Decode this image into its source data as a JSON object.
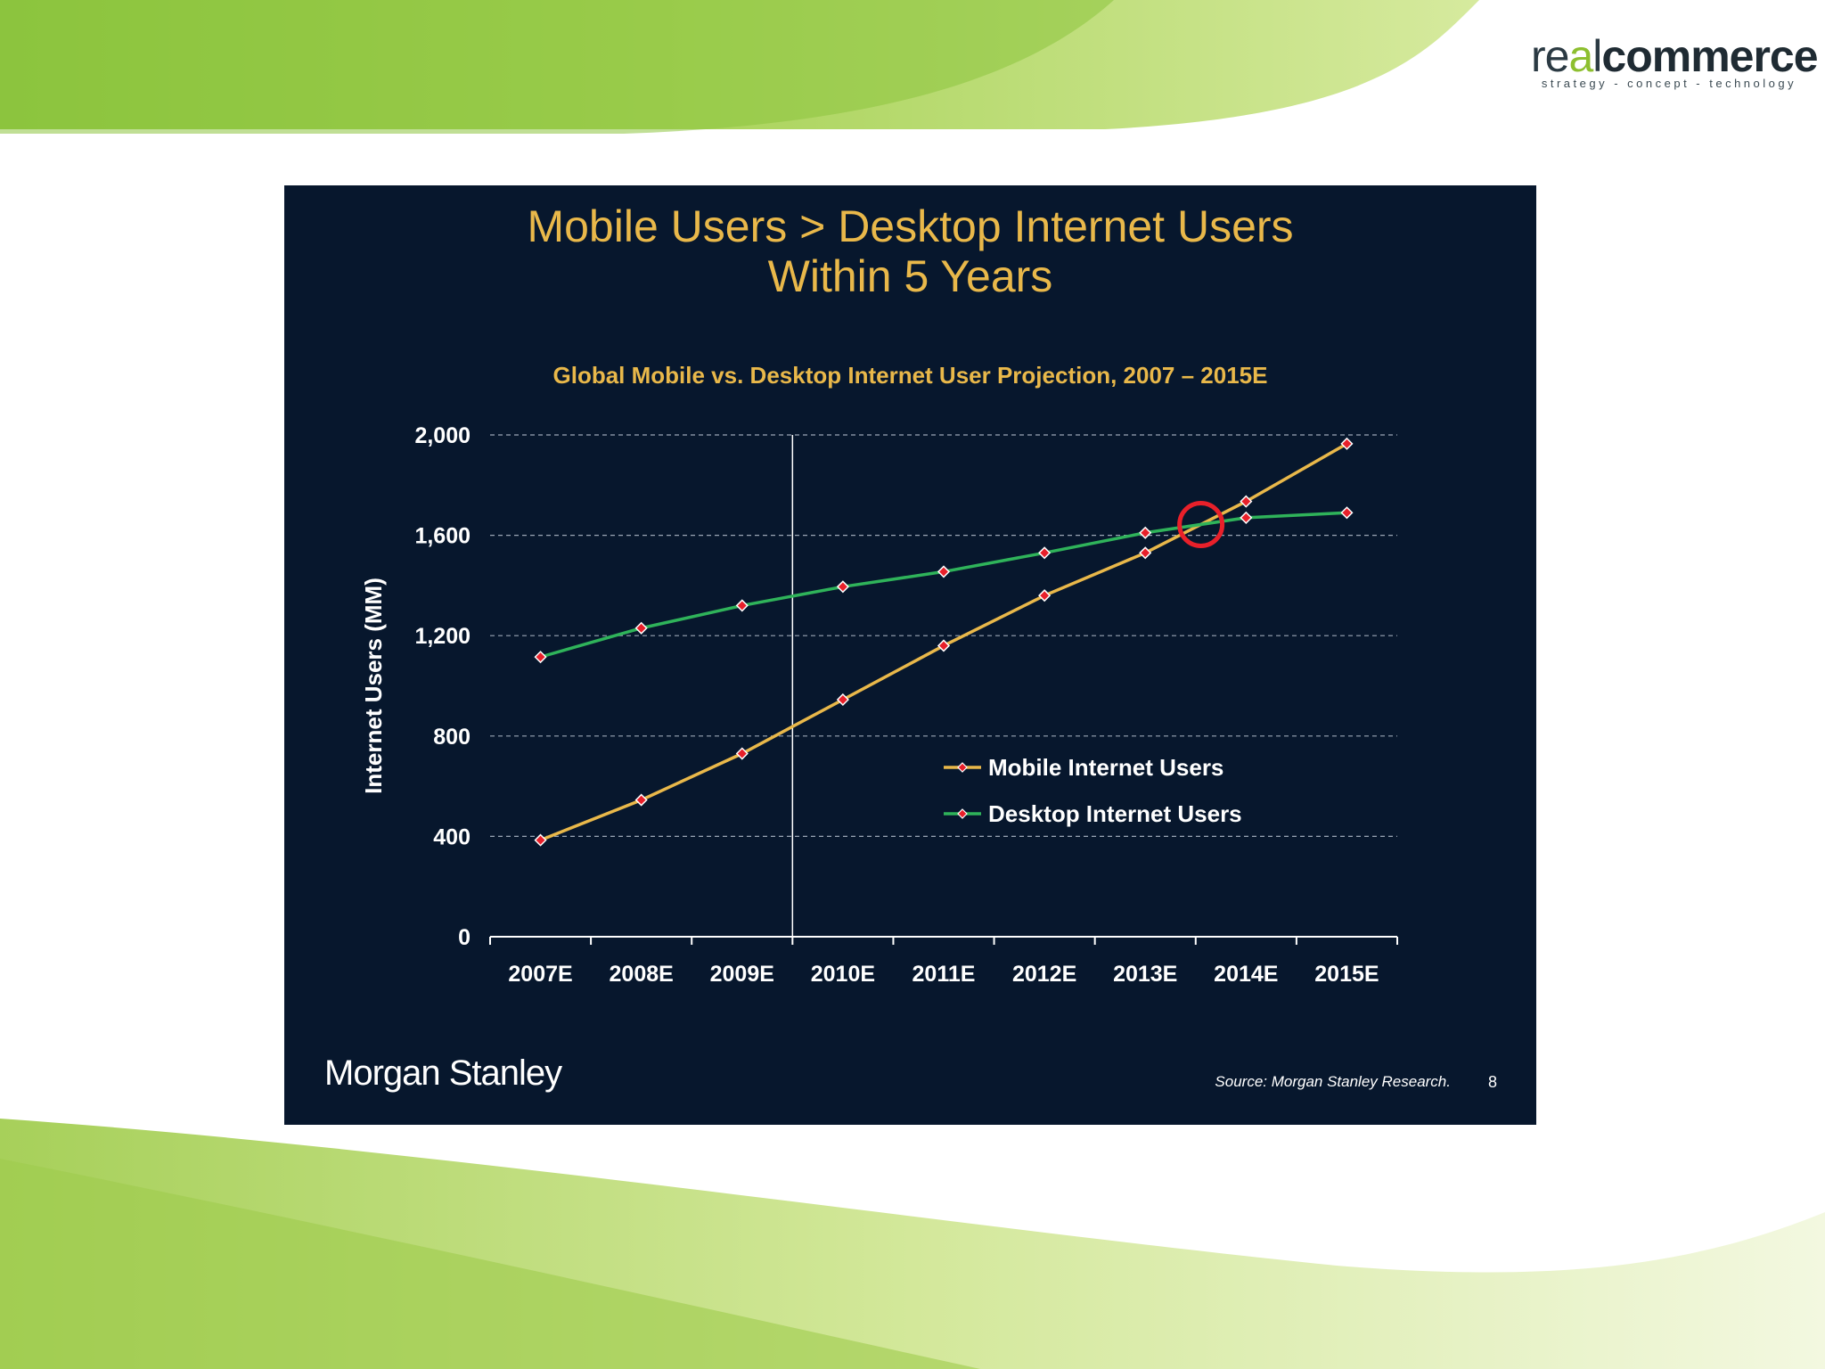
{
  "logo": {
    "prefix": "re",
    "accent": "a",
    "mid": "l",
    "bold": "commerce",
    "tagline": "strategy - concept - technology"
  },
  "slide": {
    "title_line1": "Mobile Users > Desktop Internet Users",
    "title_line2": "Within 5 Years"
  },
  "footer": {
    "brand": "Morgan Stanley",
    "source": "Source: Morgan Stanley Research.",
    "page": "8"
  },
  "colors": {
    "panel": "#07172d",
    "mobile": "#e9b84a",
    "desktop": "#2fb35a",
    "marker": "#e8202a",
    "title": "#e9b84a",
    "highlight": "#e8202a"
  },
  "chart_data": {
    "type": "line",
    "title": "Global Mobile vs. Desktop Internet User Projection, 2007 – 2015E",
    "ylabel": "Internet Users (MM)",
    "xlabel": "",
    "categories": [
      "2007E",
      "2008E",
      "2009E",
      "2010E",
      "2011E",
      "2012E",
      "2013E",
      "2014E",
      "2015E"
    ],
    "ylim": [
      0,
      2000
    ],
    "yticks": [
      0,
      400,
      800,
      1200,
      1600,
      2000
    ],
    "ytick_labels": [
      "0",
      "400",
      "800",
      "1,200",
      "1,600",
      "2,000"
    ],
    "grid": "horizontal-dashed",
    "legend_position": "lower-right",
    "divider_after_category": "2009E",
    "highlight": "crossover-circle-between-2013E-2014E",
    "series": [
      {
        "name": "Mobile Internet Users",
        "values": [
          385,
          545,
          730,
          945,
          1160,
          1360,
          1530,
          1735,
          1965
        ]
      },
      {
        "name": "Desktop Internet Users",
        "values": [
          1115,
          1230,
          1320,
          1395,
          1455,
          1530,
          1610,
          1670,
          1690
        ]
      }
    ]
  }
}
